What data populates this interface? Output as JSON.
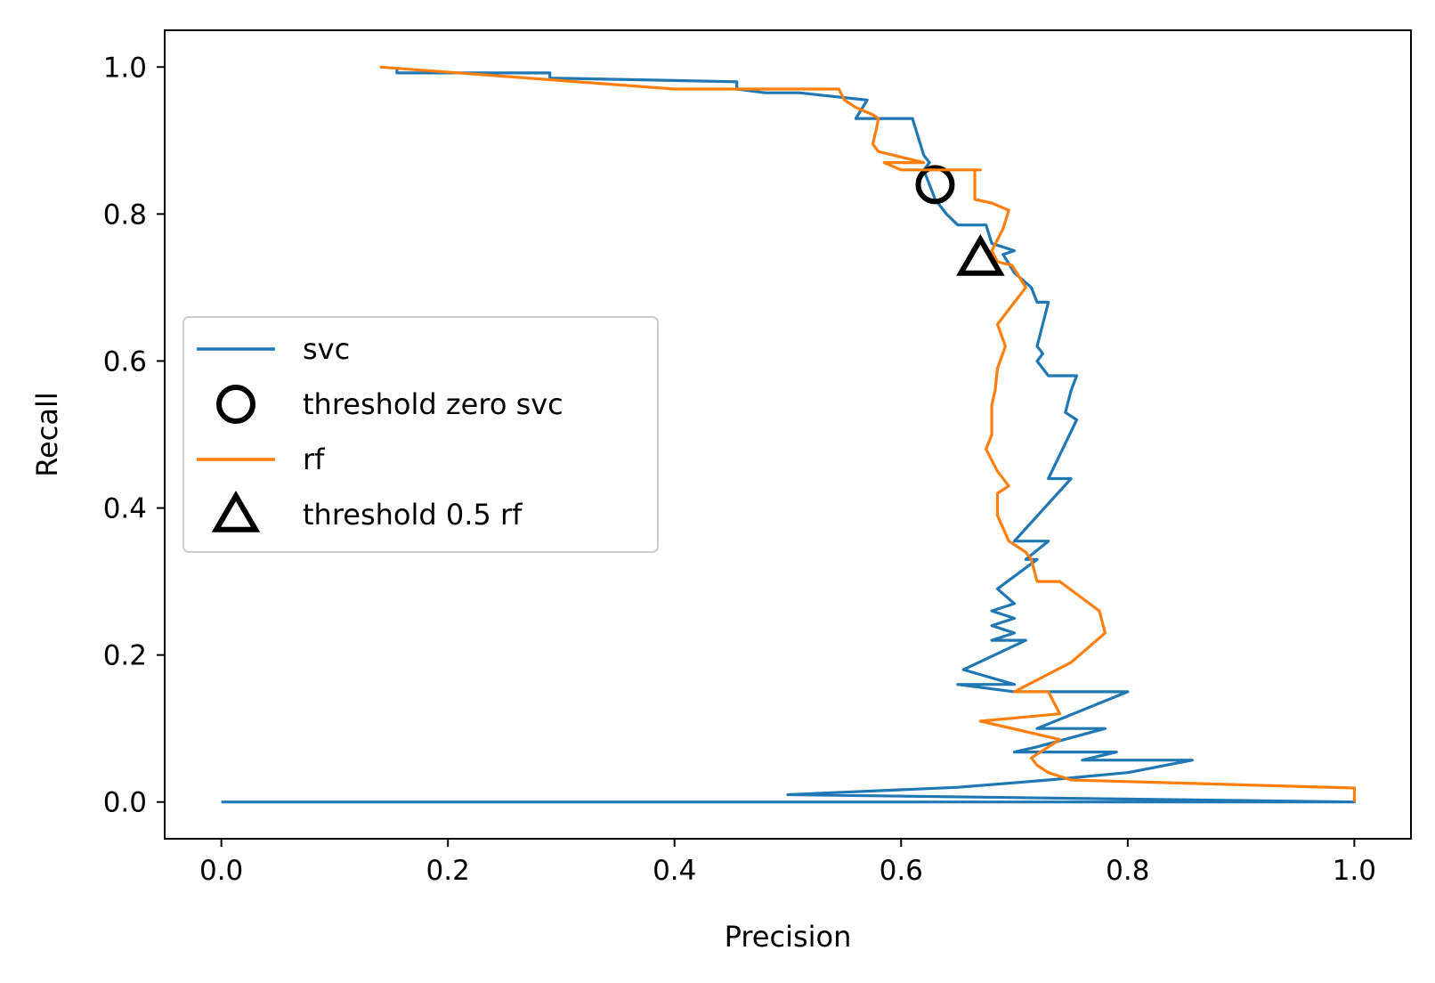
{
  "chart_data": {
    "type": "line",
    "title": "",
    "xlabel": "Precision",
    "ylabel": "Recall",
    "xlim": [
      -0.05,
      1.05
    ],
    "ylim": [
      -0.05,
      1.05
    ],
    "xticks": [
      "0.0",
      "0.2",
      "0.4",
      "0.6",
      "0.8",
      "1.0"
    ],
    "yticks": [
      "0.0",
      "0.2",
      "0.4",
      "0.6",
      "0.8",
      "1.0"
    ],
    "grid": false,
    "legend_position": "center-left",
    "series": [
      {
        "name": "svc",
        "kind": "line",
        "color": "#1f77b4",
        "points": [
          [
            0.0,
            0.0
          ],
          [
            1.0,
            0.0
          ],
          [
            1.0,
            0.0
          ],
          [
            0.5,
            0.01
          ],
          [
            0.65,
            0.02
          ],
          [
            0.73,
            0.03
          ],
          [
            0.8,
            0.04
          ],
          [
            0.857,
            0.057
          ],
          [
            0.76,
            0.057
          ],
          [
            0.79,
            0.068
          ],
          [
            0.7,
            0.068
          ],
          [
            0.72,
            0.075
          ],
          [
            0.78,
            0.1
          ],
          [
            0.72,
            0.1
          ],
          [
            0.8,
            0.15
          ],
          [
            0.7,
            0.15
          ],
          [
            0.65,
            0.16
          ],
          [
            0.7,
            0.16
          ],
          [
            0.655,
            0.18
          ],
          [
            0.71,
            0.22
          ],
          [
            0.68,
            0.22
          ],
          [
            0.7,
            0.23
          ],
          [
            0.68,
            0.24
          ],
          [
            0.7,
            0.25
          ],
          [
            0.68,
            0.26
          ],
          [
            0.7,
            0.27
          ],
          [
            0.685,
            0.29
          ],
          [
            0.72,
            0.33
          ],
          [
            0.71,
            0.33
          ],
          [
            0.73,
            0.355
          ],
          [
            0.7,
            0.355
          ],
          [
            0.75,
            0.44
          ],
          [
            0.73,
            0.44
          ],
          [
            0.755,
            0.52
          ],
          [
            0.745,
            0.53
          ],
          [
            0.75,
            0.56
          ],
          [
            0.755,
            0.58
          ],
          [
            0.73,
            0.58
          ],
          [
            0.72,
            0.6
          ],
          [
            0.725,
            0.61
          ],
          [
            0.72,
            0.62
          ],
          [
            0.73,
            0.68
          ],
          [
            0.72,
            0.68
          ],
          [
            0.715,
            0.7
          ],
          [
            0.7,
            0.72
          ],
          [
            0.69,
            0.745
          ],
          [
            0.7,
            0.75
          ],
          [
            0.68,
            0.76
          ],
          [
            0.675,
            0.785
          ],
          [
            0.65,
            0.785
          ],
          [
            0.64,
            0.8
          ],
          [
            0.63,
            0.82
          ],
          [
            0.625,
            0.84
          ],
          [
            0.62,
            0.86
          ],
          [
            0.625,
            0.87
          ],
          [
            0.62,
            0.88
          ],
          [
            0.61,
            0.93
          ],
          [
            0.56,
            0.93
          ],
          [
            0.57,
            0.955
          ],
          [
            0.54,
            0.96
          ],
          [
            0.51,
            0.965
          ],
          [
            0.48,
            0.965
          ],
          [
            0.455,
            0.97
          ],
          [
            0.455,
            0.98
          ],
          [
            0.29,
            0.985
          ],
          [
            0.29,
            0.992
          ],
          [
            0.155,
            0.992
          ],
          [
            0.155,
            1.0
          ]
        ]
      },
      {
        "name": "threshold zero svc",
        "kind": "marker",
        "marker": "circle",
        "color": "#000000",
        "points": [
          [
            0.63,
            0.84
          ]
        ]
      },
      {
        "name": "rf",
        "kind": "line",
        "color": "#ff7f0e",
        "points": [
          [
            1.0,
            0.0
          ],
          [
            1.0,
            0.019
          ],
          [
            0.75,
            0.03
          ],
          [
            0.73,
            0.04
          ],
          [
            0.72,
            0.05
          ],
          [
            0.715,
            0.06
          ],
          [
            0.74,
            0.085
          ],
          [
            0.67,
            0.11
          ],
          [
            0.74,
            0.12
          ],
          [
            0.73,
            0.15
          ],
          [
            0.7,
            0.15
          ],
          [
            0.75,
            0.19
          ],
          [
            0.78,
            0.23
          ],
          [
            0.775,
            0.26
          ],
          [
            0.74,
            0.3
          ],
          [
            0.72,
            0.3
          ],
          [
            0.715,
            0.33
          ],
          [
            0.71,
            0.34
          ],
          [
            0.695,
            0.355
          ],
          [
            0.685,
            0.39
          ],
          [
            0.685,
            0.42
          ],
          [
            0.695,
            0.43
          ],
          [
            0.685,
            0.45
          ],
          [
            0.675,
            0.48
          ],
          [
            0.68,
            0.5
          ],
          [
            0.68,
            0.54
          ],
          [
            0.683,
            0.56
          ],
          [
            0.685,
            0.59
          ],
          [
            0.692,
            0.62
          ],
          [
            0.685,
            0.65
          ],
          [
            0.695,
            0.67
          ],
          [
            0.705,
            0.69
          ],
          [
            0.71,
            0.7
          ],
          [
            0.698,
            0.73
          ],
          [
            0.685,
            0.735
          ],
          [
            0.68,
            0.75
          ],
          [
            0.69,
            0.78
          ],
          [
            0.695,
            0.805
          ],
          [
            0.68,
            0.815
          ],
          [
            0.665,
            0.82
          ],
          [
            0.665,
            0.86
          ],
          [
            0.67,
            0.86
          ],
          [
            0.6,
            0.86
          ],
          [
            0.585,
            0.87
          ],
          [
            0.62,
            0.87
          ],
          [
            0.58,
            0.885
          ],
          [
            0.575,
            0.895
          ],
          [
            0.578,
            0.915
          ],
          [
            0.58,
            0.93
          ],
          [
            0.575,
            0.935
          ],
          [
            0.56,
            0.945
          ],
          [
            0.55,
            0.955
          ],
          [
            0.545,
            0.97
          ],
          [
            0.4,
            0.97
          ],
          [
            0.14,
            1.0
          ]
        ]
      },
      {
        "name": "threshold 0.5 rf",
        "kind": "marker",
        "marker": "triangle",
        "color": "#000000",
        "points": [
          [
            0.67,
            0.74
          ]
        ]
      }
    ]
  }
}
